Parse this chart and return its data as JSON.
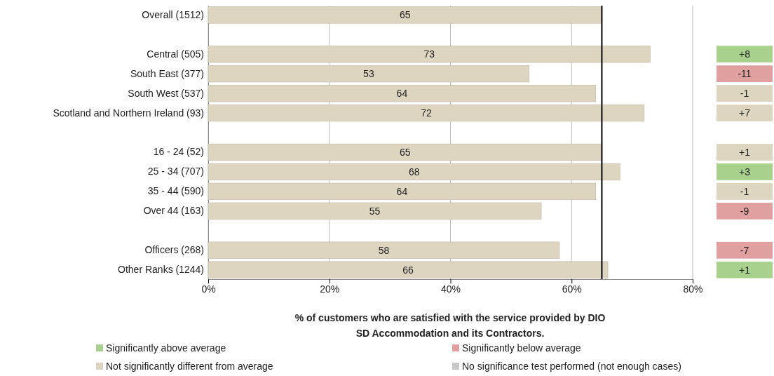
{
  "chart_data": {
    "type": "bar",
    "orientation": "horizontal",
    "xlabel": "% of customers who are satisfied with the service provided by DIO SD Accommodation and its Contractors.",
    "categories": [
      "Overall (1512)",
      null,
      "Central (505)",
      "South East (377)",
      "South West (537)",
      "Scotland and Northern Ireland (93)",
      null,
      "16 - 24 (52)",
      "25 - 34 (707)",
      "35 - 44 (590)",
      "Over 44 (163)",
      null,
      "Officers (268)",
      "Other Ranks (1244)"
    ],
    "series": [
      {
        "color": "#ddd5c0",
        "values": [
          65,
          null,
          73,
          53,
          64,
          72,
          null,
          65,
          68,
          64,
          55,
          null,
          58,
          66
        ]
      },
      {
        "type": "other",
        "name": "Significantly above average",
        "color": "#a9d18e",
        "values": [
          null,
          null,
          null,
          null,
          null,
          null,
          null,
          null,
          null,
          null,
          null,
          null,
          null,
          null
        ],
        "value_labels": [
          null,
          null,
          "+8",
          null,
          null,
          null,
          null,
          null,
          "+3",
          null,
          null,
          null,
          null,
          "+1"
        ]
      },
      {
        "type": "other",
        "name": "Significantly below average",
        "color": "#e0a0a0",
        "values": [
          null,
          null,
          null,
          null,
          null,
          null,
          null,
          null,
          null,
          null,
          null,
          null,
          null,
          null
        ],
        "value_labels": [
          null,
          null,
          null,
          "-11",
          null,
          null,
          null,
          null,
          null,
          null,
          "-9",
          null,
          "-7",
          null
        ]
      },
      {
        "type": "other",
        "name": "Not significantly different from average",
        "color": "#ddd5c0",
        "values": [
          null,
          null,
          null,
          null,
          null,
          null,
          null,
          null,
          null,
          null,
          null,
          null,
          null,
          null
        ],
        "value_labels": [
          null,
          null,
          null,
          null,
          "-1",
          "+7",
          null,
          "+1",
          null,
          "-1",
          null,
          null,
          null,
          null
        ]
      },
      {
        "type": "other",
        "name": "No significance test performed (not enough cases)",
        "color": "#c8c8c8",
        "values": [
          null,
          null,
          null,
          null,
          null,
          null,
          null,
          null,
          null,
          null,
          null,
          null,
          null,
          null
        ]
      }
    ],
    "xlim": [
      0,
      80
    ],
    "xticks": [
      {
        "value": 0,
        "label": "0%"
      },
      {
        "value": 20,
        "label": "20%"
      },
      {
        "value": 40,
        "label": "40%"
      },
      {
        "value": 60,
        "label": "60%"
      },
      {
        "value": 80,
        "label": "80%"
      }
    ],
    "grid": "x",
    "data_labels": true,
    "legend": "bottom",
    "ref_lines": [
      {
        "axis": "x",
        "value": 65,
        "color": "#000000"
      }
    ]
  }
}
